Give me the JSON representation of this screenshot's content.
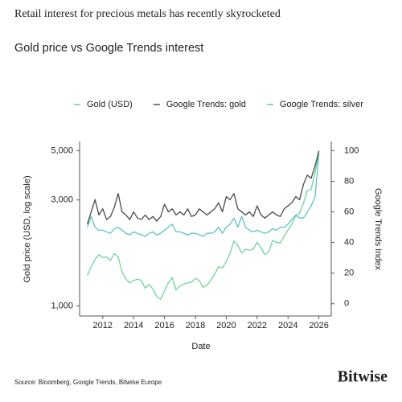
{
  "header": "Retail interest for precious metals has recently skyrocketed",
  "chart_data": {
    "type": "line",
    "title": "Gold price vs Google Trends interest",
    "xlabel": "Date",
    "ylabel": "Gold price (USD, log scale)",
    "y2label": "Google Trends Index",
    "source": "Source: Bloomberg, Google Trends, Bitwise Europe",
    "brand": "Bitwise",
    "log_scale": true,
    "x": [
      2011,
      2011.25,
      2011.5,
      2011.75,
      2012,
      2012.25,
      2012.5,
      2012.75,
      2013,
      2013.25,
      2013.5,
      2013.75,
      2014,
      2014.25,
      2014.5,
      2014.75,
      2015,
      2015.25,
      2015.5,
      2015.75,
      2016,
      2016.25,
      2016.5,
      2016.75,
      2017,
      2017.25,
      2017.5,
      2017.75,
      2018,
      2018.25,
      2018.5,
      2018.75,
      2019,
      2019.25,
      2019.5,
      2019.75,
      2020,
      2020.25,
      2020.5,
      2020.75,
      2021,
      2021.25,
      2021.5,
      2021.75,
      2022,
      2022.25,
      2022.5,
      2022.75,
      2023,
      2023.25,
      2023.5,
      2023.75,
      2024,
      2024.25,
      2024.5,
      2024.75,
      2025,
      2025.25,
      2025.5,
      2025.75,
      2026
    ],
    "series": [
      {
        "name": "Gold (USD)",
        "color": "#6fd49c",
        "axis": "y",
        "values": [
          1370,
          1500,
          1620,
          1700,
          1650,
          1660,
          1600,
          1720,
          1660,
          1420,
          1320,
          1270,
          1300,
          1320,
          1300,
          1200,
          1250,
          1190,
          1100,
          1070,
          1170,
          1270,
          1340,
          1180,
          1230,
          1250,
          1270,
          1280,
          1330,
          1300,
          1210,
          1240,
          1300,
          1390,
          1500,
          1480,
          1580,
          1730,
          1960,
          1870,
          1730,
          1800,
          1780,
          1800,
          1930,
          1830,
          1700,
          1750,
          1970,
          1930,
          1920,
          2060,
          2200,
          2330,
          2550,
          2620,
          2900,
          3300,
          3350,
          4000,
          4900
        ]
      },
      {
        "name": "Google Trends: gold",
        "color": "#4a4a4a",
        "axis": "y2",
        "values": [
          52,
          60,
          68,
          58,
          62,
          55,
          57,
          63,
          72,
          60,
          58,
          55,
          60,
          56,
          55,
          58,
          55,
          57,
          54,
          57,
          65,
          60,
          62,
          58,
          60,
          58,
          62,
          57,
          58,
          62,
          60,
          58,
          60,
          62,
          66,
          60,
          70,
          68,
          72,
          62,
          60,
          58,
          60,
          57,
          64,
          58,
          56,
          58,
          60,
          58,
          57,
          62,
          64,
          66,
          70,
          68,
          78,
          84,
          82,
          90,
          100
        ]
      },
      {
        "name": "Google Trends: silver",
        "color": "#5cc4c2",
        "axis": "y2",
        "values": [
          50,
          57,
          50,
          48,
          48,
          47,
          46,
          49,
          50,
          48,
          46,
          45,
          47,
          46,
          45,
          44,
          46,
          47,
          45,
          46,
          48,
          50,
          52,
          47,
          47,
          46,
          45,
          46,
          46,
          45,
          44,
          46,
          46,
          47,
          50,
          46,
          50,
          52,
          56,
          50,
          57,
          50,
          48,
          47,
          48,
          47,
          46,
          47,
          49,
          48,
          50,
          50,
          52,
          55,
          58,
          56,
          56,
          60,
          64,
          70,
          98
        ]
      }
    ],
    "xlim": [
      2010.5,
      2026.8
    ],
    "xticks": [
      2012,
      2014,
      2016,
      2018,
      2020,
      2022,
      2024,
      2026
    ],
    "ylim": [
      900,
      5500
    ],
    "yticks": [
      {
        "value": 1000,
        "label": "1,000"
      },
      {
        "value": 3000,
        "label": "3,000"
      },
      {
        "value": 5000,
        "label": "5,000"
      }
    ],
    "y2lim": [
      -8,
      106
    ],
    "y2ticks": [
      0,
      20,
      40,
      60,
      80,
      100
    ]
  }
}
